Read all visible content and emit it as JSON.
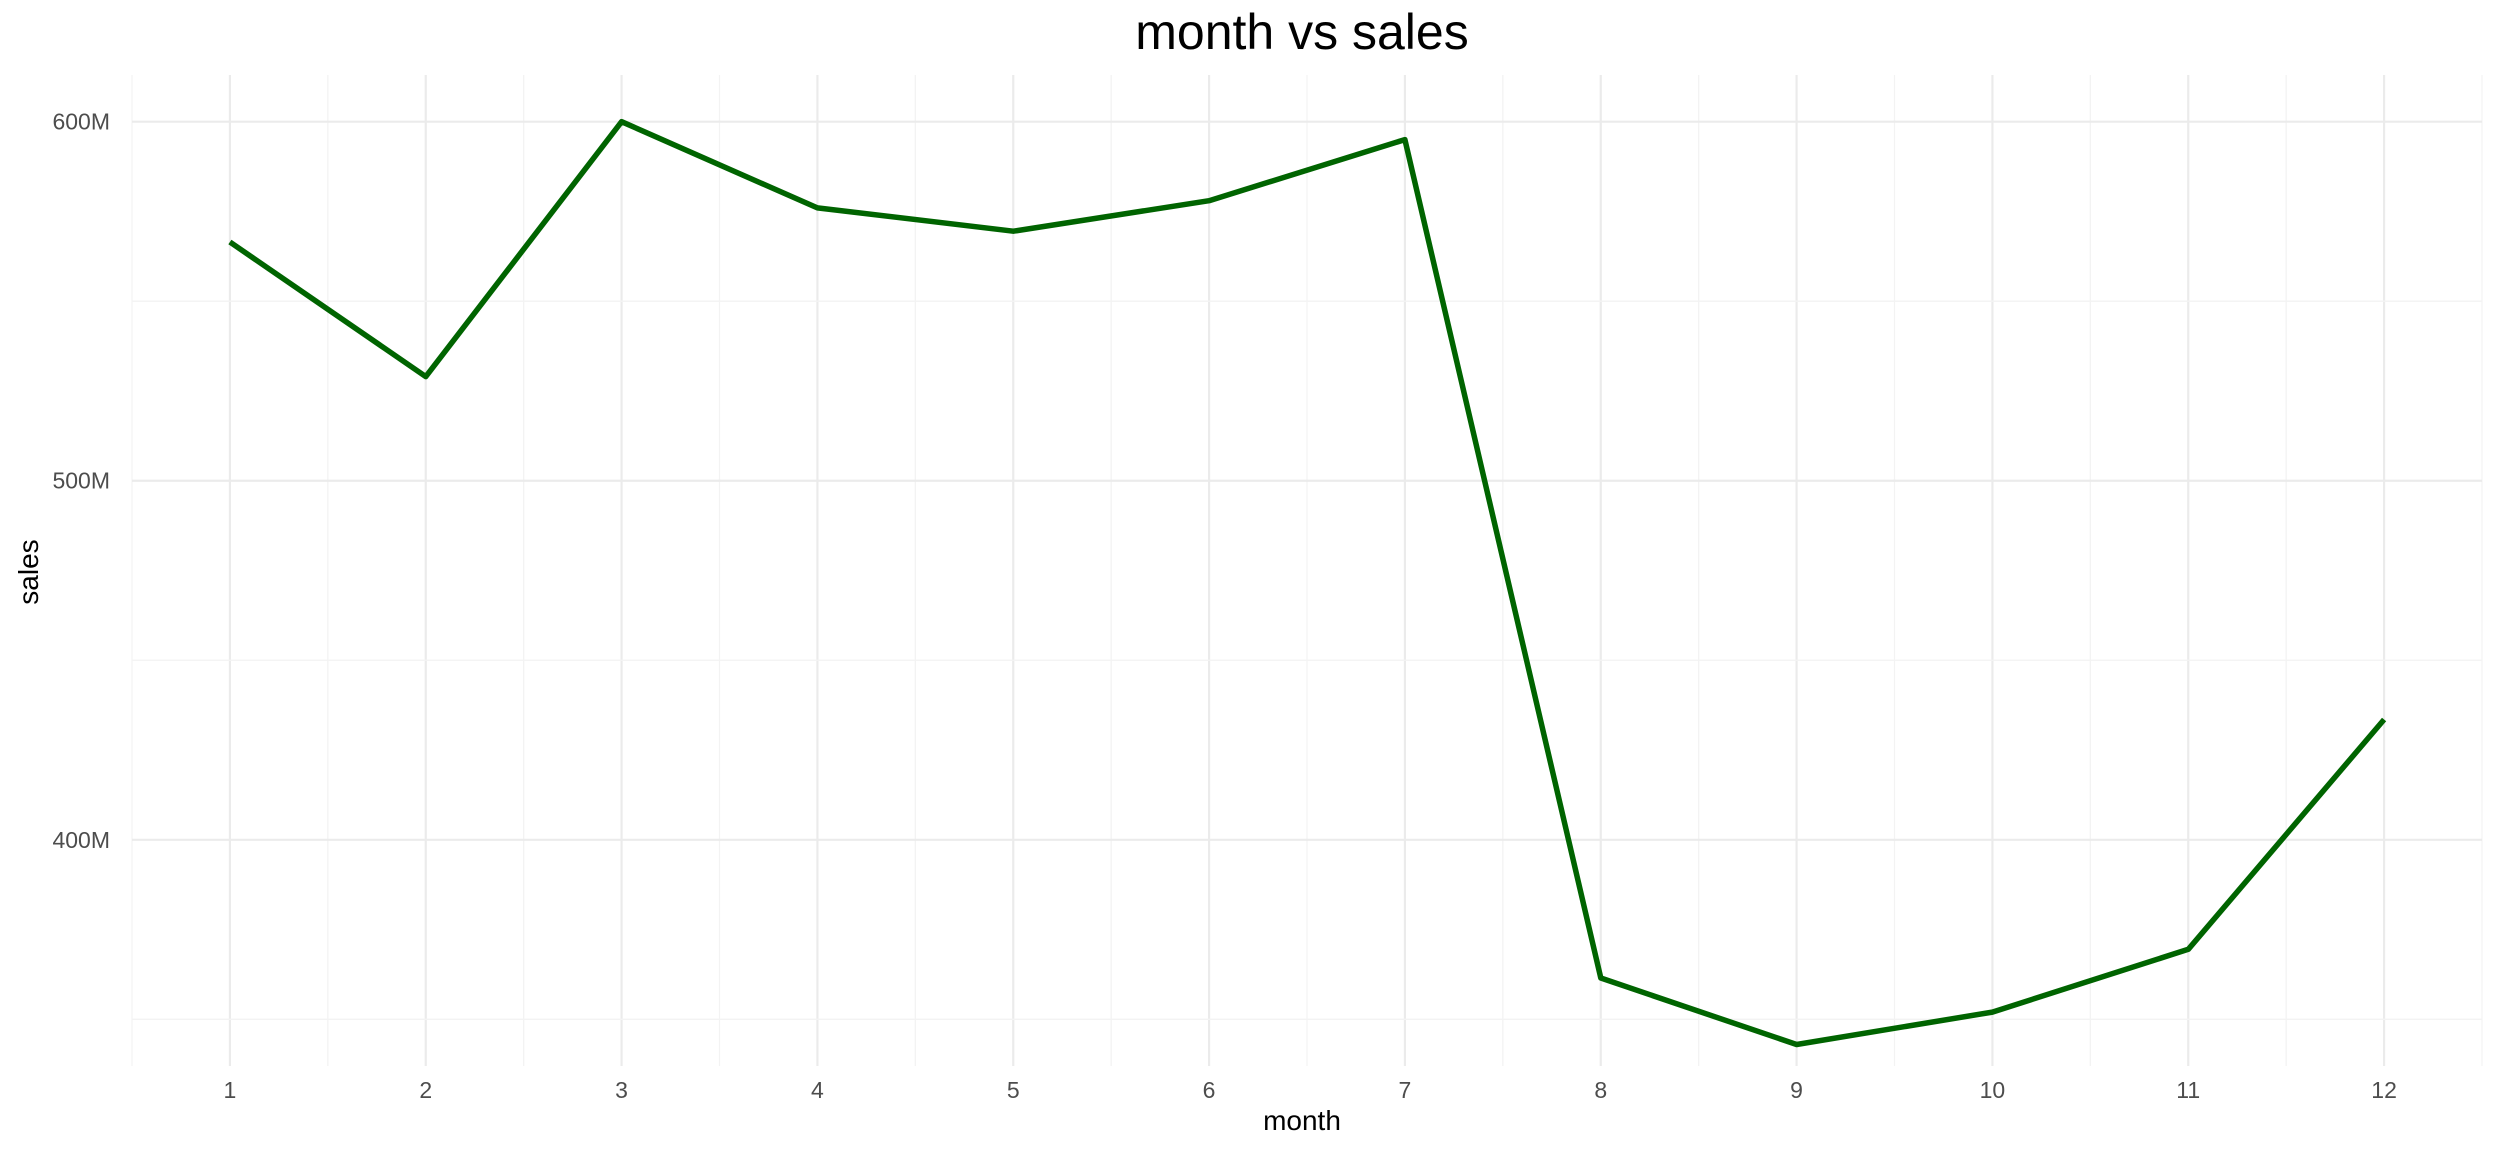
{
  "chart_data": {
    "type": "line",
    "title": "month vs sales",
    "xlabel": "month",
    "ylabel": "sales",
    "x": [
      1,
      2,
      3,
      4,
      5,
      6,
      7,
      8,
      9,
      10,
      11,
      12
    ],
    "x_tick_labels": [
      "1",
      "2",
      "3",
      "4",
      "5",
      "6",
      "7",
      "8",
      "9",
      "10",
      "11",
      "12"
    ],
    "series": [
      {
        "values": [
          566500000,
          529000000,
          600000000,
          576000000,
          569500000,
          578000000,
          595000000,
          361500000,
          343000000,
          352000000,
          369500000,
          433500000
        ]
      }
    ],
    "y_ticks": [
      400000000,
      500000000,
      600000000
    ],
    "y_tick_labels": [
      "400M",
      "500M",
      "600M"
    ],
    "xlim": [
      0.5,
      12.5
    ],
    "ylim": [
      337000000,
      613000000
    ],
    "grid": true,
    "legend": "none",
    "colors": {
      "line": "#006400",
      "grid_major": "#ebebeb",
      "grid_minor": "#f3f3f3",
      "tick_text": "#4d4d4d",
      "text": "#000000"
    }
  }
}
